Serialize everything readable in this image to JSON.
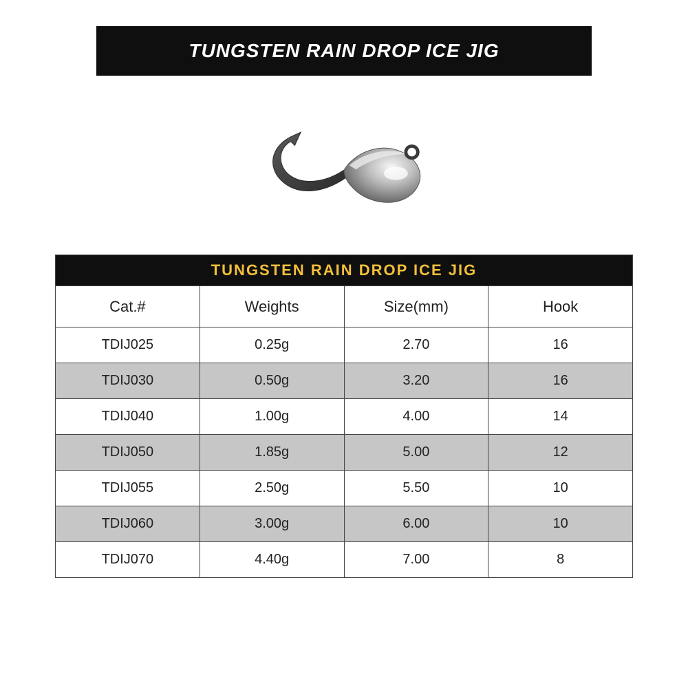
{
  "banner": {
    "text": "TUNGSTEN RAIN DROP ICE JIG",
    "bg": "#0f0f0f",
    "color": "#ffffff",
    "fontsize": 28
  },
  "tableTitle": {
    "text": "TUNGSTEN RAIN DROP ICE JIG",
    "bg": "#0f0f0f",
    "color": "#f4bf3a",
    "fontsize": 22
  },
  "table": {
    "border_color": "#444444",
    "border_width": 1,
    "header_bg": "#ffffff",
    "row_bg_even": "#ffffff",
    "row_bg_odd": "#c6c6c6",
    "text_color": "#222222",
    "columns": [
      "Cat.#",
      "Weights",
      "Size(mm)",
      "Hook"
    ],
    "col_widths": [
      "25%",
      "25%",
      "25%",
      "25%"
    ],
    "rows": [
      [
        "TDIJ025",
        "0.25g",
        "2.70",
        "16"
      ],
      [
        "TDIJ030",
        "0.50g",
        "3.20",
        "16"
      ],
      [
        "TDIJ040",
        "1.00g",
        "4.00",
        "14"
      ],
      [
        "TDIJ050",
        "1.85g",
        "5.00",
        "12"
      ],
      [
        "TDIJ055",
        "2.50g",
        "5.50",
        "10"
      ],
      [
        "TDIJ060",
        "3.00g",
        "6.00",
        "10"
      ],
      [
        "TDIJ070",
        "4.40g",
        "7.00",
        "8"
      ]
    ]
  },
  "jig": {
    "body_fill": "#b8b8b8",
    "body_highlight": "#f2f2f2",
    "body_shadow": "#6f6f6f",
    "hook_color": "#3a3a3a"
  }
}
